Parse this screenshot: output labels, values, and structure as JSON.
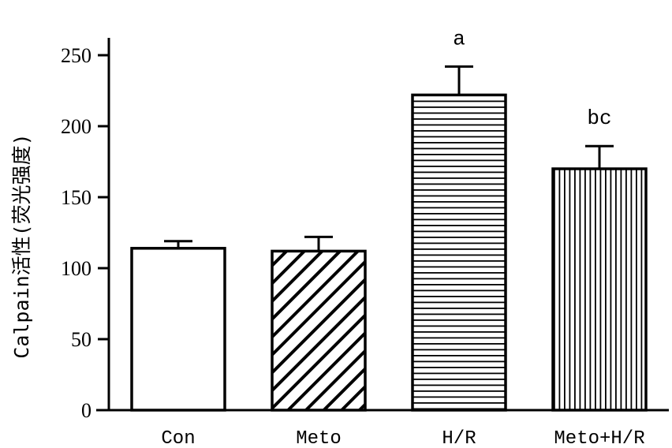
{
  "chart_data": {
    "type": "bar",
    "title": "",
    "xlabel": "",
    "ylabel": "Calpain活性(荧光强度)",
    "ylim": [
      0,
      250
    ],
    "yticks": [
      0,
      50,
      100,
      150,
      200,
      250
    ],
    "categories": [
      "Con",
      "Meto",
      "H/R",
      "Meto+H/R"
    ],
    "values": [
      114,
      112,
      222,
      170
    ],
    "errors": [
      5,
      10,
      20,
      16
    ],
    "patterns": [
      "none",
      "diagonal",
      "horizontal",
      "vertical"
    ],
    "annotations": [
      "",
      "",
      "a",
      "bc"
    ],
    "bar_color": "#ffffff",
    "stroke_color": "#000000",
    "grid": false
  }
}
